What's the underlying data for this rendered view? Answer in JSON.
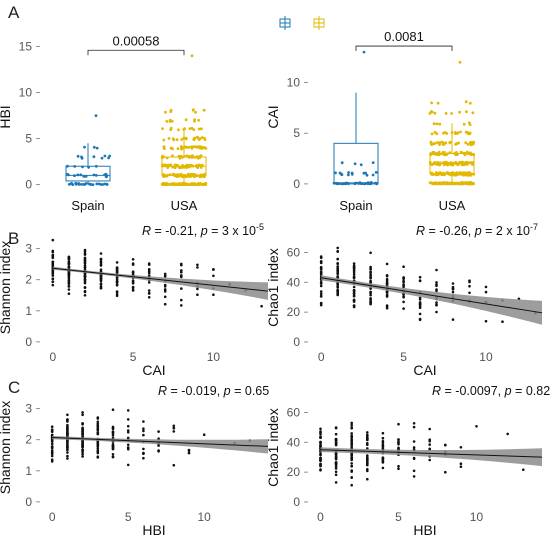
{
  "figure": {
    "colors": {
      "spain": "#1f77b4",
      "usa": "#e3b800",
      "band": "#8c8c8c",
      "point": "#111111"
    },
    "legend_icons": [
      "boxplot-key-icon",
      "boxplot-key-icon"
    ]
  },
  "chart_data": [
    {
      "id": "A-left",
      "panel_letter": "A",
      "type": "box",
      "ylabel": "HBI",
      "categories": [
        "Spain",
        "USA"
      ],
      "yticks": [
        0,
        5,
        10,
        15
      ],
      "ylim": [
        -0.8,
        15.5
      ],
      "pvalue": "0.00058",
      "boxes": [
        {
          "name": "Spain",
          "q1": 0.4,
          "median": 1.0,
          "q3": 2.0,
          "whisker_low": 0,
          "whisker_high": 4.5,
          "n_points": 55,
          "max_outlier": 7.5
        },
        {
          "name": "USA",
          "q1": 1.0,
          "median": 2.0,
          "q3": 3.0,
          "whisker_low": 0,
          "whisker_high": 6.0,
          "n_points": 380,
          "max_outlier": 14.0
        }
      ]
    },
    {
      "id": "A-right",
      "panel_letter": "",
      "type": "box",
      "ylabel": "CAI",
      "categories": [
        "Spain",
        "USA"
      ],
      "yticks": [
        0,
        5,
        10
      ],
      "ylim": [
        -0.8,
        14.0
      ],
      "pvalue": "0.0081",
      "boxes": [
        {
          "name": "Spain",
          "q1": 0.0,
          "median": 0.1,
          "q3": 4.0,
          "whisker_low": 0,
          "whisker_high": 9.0,
          "n_points": 55,
          "max_outlier": 13.0
        },
        {
          "name": "USA",
          "q1": 1.0,
          "median": 2.0,
          "q3": 3.0,
          "whisker_low": 0,
          "whisker_high": 6.0,
          "n_points": 380,
          "max_outlier": 12.0
        }
      ]
    },
    {
      "id": "B-left",
      "panel_letter": "B",
      "type": "scatter",
      "xlabel": "CAI",
      "ylabel": "Shannon index",
      "xticks": [
        0,
        5,
        10
      ],
      "yticks": [
        0,
        1,
        2,
        3
      ],
      "xlim": [
        -0.8,
        13.4
      ],
      "ylim": [
        -0.1,
        3.6
      ],
      "stat_R": "-0.21",
      "stat_p": "3 x 10",
      "stat_exp": "-5",
      "fit": {
        "intercept": 2.37,
        "slope": -0.055,
        "se0": 0.04,
        "se1": 0.24
      },
      "x_counts": [
        30,
        40,
        35,
        28,
        24,
        18,
        15,
        12,
        10,
        6,
        5,
        2,
        1,
        1
      ],
      "spread": 0.55
    },
    {
      "id": "B-right",
      "panel_letter": "",
      "type": "scatter",
      "xlabel": "CAI",
      "ylabel": "Chao1 index",
      "xticks": [
        0,
        5,
        10
      ],
      "yticks": [
        0,
        20,
        40,
        60
      ],
      "xlim": [
        -0.8,
        13.4
      ],
      "ylim": [
        -2,
        75
      ],
      "stat_R": "-0.26",
      "stat_p": "2 x 10",
      "stat_exp": "-7",
      "fit": {
        "intercept": 43,
        "slope": -1.75,
        "se0": 1.5,
        "se1": 6.5
      },
      "x_counts": [
        30,
        40,
        35,
        28,
        24,
        18,
        15,
        12,
        10,
        6,
        5,
        2,
        1,
        1
      ],
      "spread": 14
    },
    {
      "id": "C-left",
      "panel_letter": "C",
      "type": "scatter",
      "xlabel": "HBI",
      "ylabel": "Shannon index",
      "xticks": [
        0,
        5,
        10
      ],
      "yticks": [
        0,
        1,
        2,
        3
      ],
      "xlim": [
        -0.8,
        14.2
      ],
      "ylim": [
        -0.1,
        3.6
      ],
      "stat_R": "-0.019",
      "stat_p": "0.65",
      "stat_exp": "",
      "fit": {
        "intercept": 2.07,
        "slope": -0.02,
        "se0": 0.05,
        "se1": 0.18
      },
      "x_counts": [
        35,
        45,
        40,
        30,
        22,
        15,
        10,
        8,
        5,
        3,
        1,
        0,
        1,
        1
      ],
      "spread": 0.6
    },
    {
      "id": "C-right",
      "panel_letter": "",
      "type": "scatter",
      "xlabel": "HBI",
      "ylabel": "Chao1 index",
      "xticks": [
        0,
        5,
        10
      ],
      "yticks": [
        0,
        20,
        40,
        60
      ],
      "xlim": [
        -0.8,
        14.2
      ],
      "ylim": [
        -2,
        75
      ],
      "stat_R": "-0.0097",
      "stat_p": "0.82",
      "stat_exp": "",
      "fit": {
        "intercept": 35,
        "slope": -0.35,
        "se0": 1.5,
        "se1": 4.5
      },
      "x_counts": [
        35,
        45,
        40,
        30,
        22,
        15,
        10,
        8,
        5,
        3,
        1,
        0,
        1,
        1
      ],
      "spread": 14
    }
  ]
}
